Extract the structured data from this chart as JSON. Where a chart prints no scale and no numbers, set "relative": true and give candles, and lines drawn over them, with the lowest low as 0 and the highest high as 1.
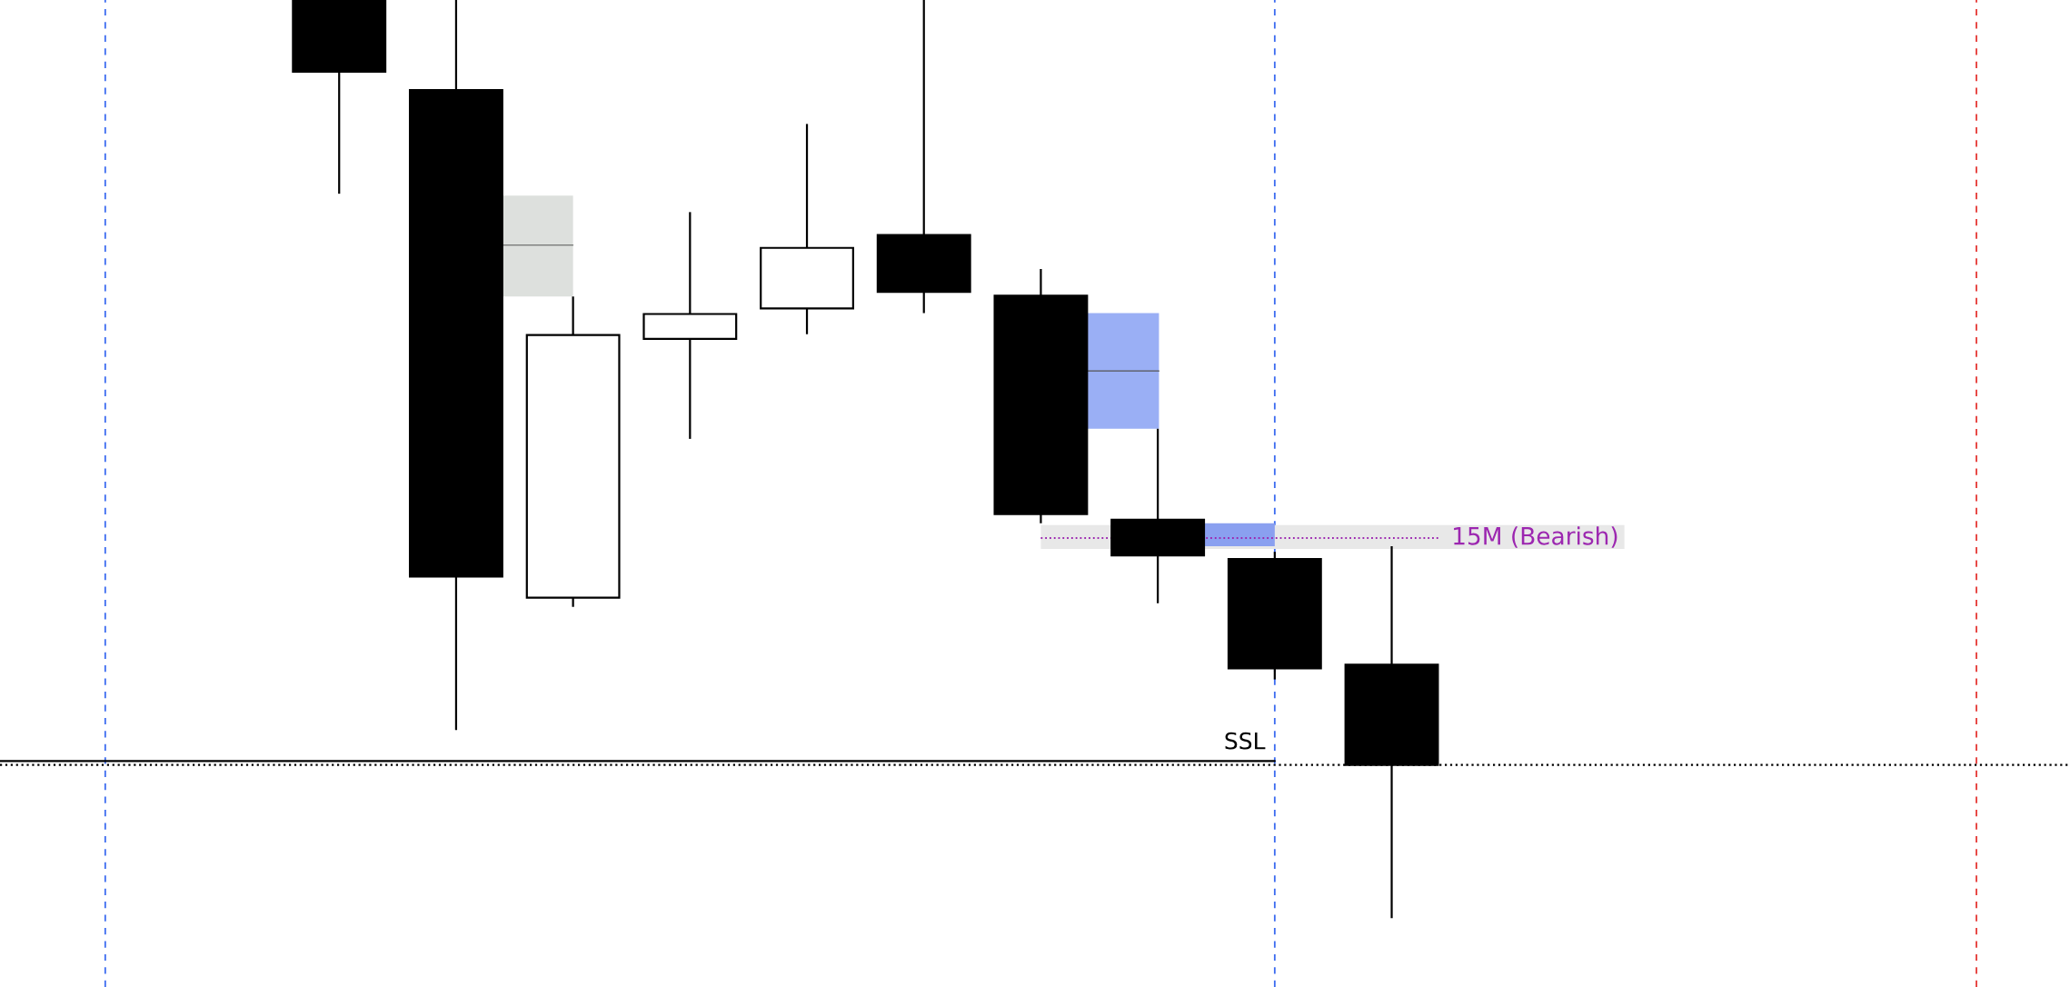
{
  "chart_data": {
    "type": "candlestick",
    "relative": true,
    "categories": [
      null,
      null,
      null,
      null,
      null,
      null,
      null,
      null,
      null,
      null
    ],
    "ohlc": [
      [
        1.0,
        1.0,
        0.789,
        0.922
      ],
      [
        0.902,
        1.0,
        0.205,
        0.372
      ],
      [
        0.349,
        0.677,
        0.339,
        0.635
      ],
      [
        0.631,
        0.769,
        0.522,
        0.658
      ],
      [
        0.664,
        0.865,
        0.636,
        0.73
      ],
      [
        0.744,
        1.0,
        0.659,
        0.682
      ],
      [
        0.678,
        0.707,
        0.43,
        0.44
      ],
      [
        0.434,
        0.533,
        0.343,
        0.395
      ],
      [
        0.391,
        0.399,
        0.26,
        0.272
      ],
      [
        0.276,
        0.405,
        0.0,
        0.167
      ]
    ],
    "ref_lines": [
      {
        "axis": "y",
        "value": 0.171,
        "label": "SSL",
        "color": "#000000",
        "line_style": "solid"
      },
      {
        "axis": "y",
        "value": 0.167,
        "label": null,
        "color": "#000000",
        "line_style": "dotted"
      }
    ],
    "annotations": [
      "15M (Bearish)"
    ],
    "grid": false,
    "legend": false
  }
}
